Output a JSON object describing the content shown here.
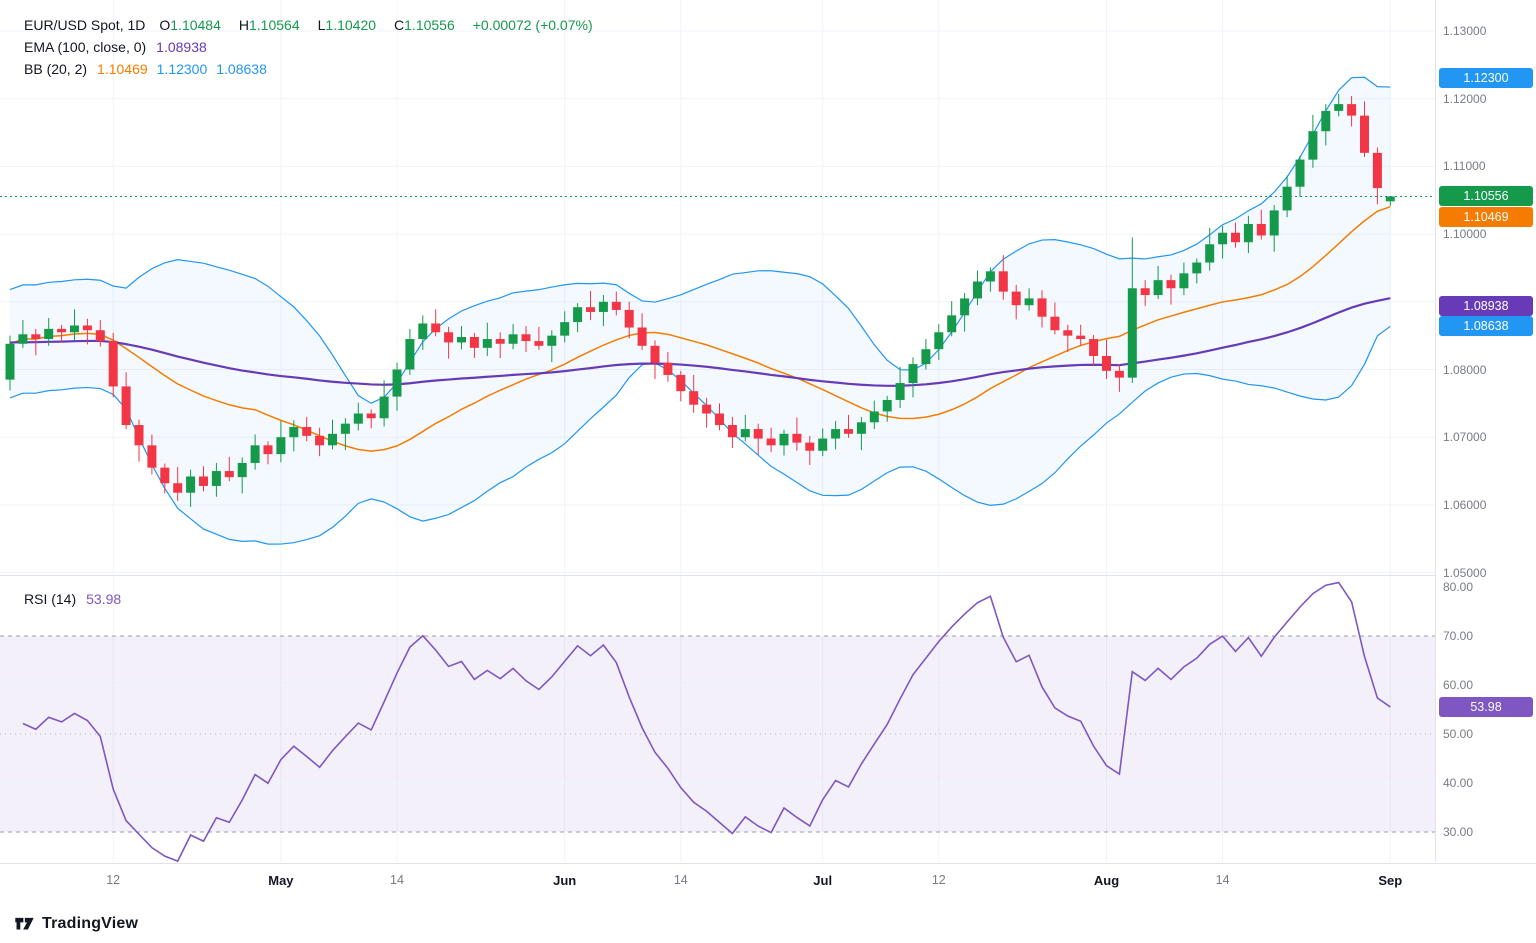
{
  "legend": {
    "symbol": "EUR/USD Spot, 1D",
    "ohlc": [
      {
        "k": "O",
        "v": "1.10484"
      },
      {
        "k": "H",
        "v": "1.10564"
      },
      {
        "k": "L",
        "v": "1.10420"
      },
      {
        "k": "C",
        "v": "1.10556"
      }
    ],
    "change": "+0.00072 (+0.07%)",
    "ema_label": "EMA (100, close, 0)",
    "ema_value": "1.08938",
    "bb_label": "BB (20, 2)",
    "bb_basis": "1.10469",
    "bb_upper": "1.12300",
    "bb_lower": "1.08638",
    "rsi_label": "RSI (14)",
    "rsi_value": "53.98"
  },
  "footer": {
    "brand": "TradingView"
  },
  "colors": {
    "text": "#131722",
    "axis_text": "#787b86",
    "grid": "#f0f3fa",
    "separator": "#e0e3eb",
    "up": "#159a4c",
    "down": "#f23645",
    "ema": "#673ab7",
    "bb_basis": "#f57c00",
    "bb_band": "#2196f3",
    "bb_fill": "rgba(33,150,243,0.055)",
    "rsi_line": "#7e57c2",
    "rsi_zone": "rgba(126,87,194,0.09)",
    "level_dash": "#9aa0aa"
  },
  "axes": {
    "price_ticks": [
      {
        "label": "1.13000",
        "value": 1.13
      },
      {
        "label": "1.12000",
        "value": 1.12
      },
      {
        "label": "1.11000",
        "value": 1.11
      },
      {
        "label": "1.10000",
        "value": 1.1
      },
      {
        "label": "1.09000",
        "value": 1.09
      },
      {
        "label": "1.08000",
        "value": 1.08
      },
      {
        "label": "1.07000",
        "value": 1.07
      },
      {
        "label": "1.06000",
        "value": 1.06
      },
      {
        "label": "1.05000",
        "value": 1.05
      }
    ],
    "rsi_ticks": [
      {
        "label": "80.00",
        "value": 80
      },
      {
        "label": "70.00",
        "value": 70
      },
      {
        "label": "60.00",
        "value": 60
      },
      {
        "label": "50.00",
        "value": 50
      },
      {
        "label": "40.00",
        "value": 40
      },
      {
        "label": "30.00",
        "value": 30
      }
    ],
    "time_ticks": [
      {
        "label": "12",
        "index": 8,
        "major": false
      },
      {
        "label": "May",
        "index": 21,
        "major": true
      },
      {
        "label": "14",
        "index": 30,
        "major": false
      },
      {
        "label": "Jun",
        "index": 43,
        "major": true
      },
      {
        "label": "14",
        "index": 52,
        "major": false
      },
      {
        "label": "Jul",
        "index": 63,
        "major": true
      },
      {
        "label": "12",
        "index": 72,
        "major": false
      },
      {
        "label": "Aug",
        "index": 85,
        "major": true
      },
      {
        "label": "14",
        "index": 94,
        "major": false
      },
      {
        "label": "Sep",
        "index": 107,
        "major": true
      }
    ]
  },
  "badges": {
    "price": [
      {
        "id": "bb-upper",
        "label": "1.12300",
        "value": 1.123,
        "color": "#2196f3"
      },
      {
        "id": "last-price",
        "label": "1.10556",
        "value": 1.10556,
        "color": "#159a4c"
      },
      {
        "id": "bb-basis",
        "label": "1.10469",
        "value": 1.10469,
        "color": "#f57c00",
        "stack_below": "last-price"
      },
      {
        "id": "ema",
        "label": "1.08938",
        "value": 1.08938,
        "color": "#673ab7"
      },
      {
        "id": "bb-lower",
        "label": "1.08638",
        "value": 1.08638,
        "color": "#2196f3"
      }
    ],
    "rsi": {
      "label": "53.98",
      "color": "#7e57c2"
    }
  },
  "chart_data": [
    {
      "type": "candlestick",
      "title": "EUR/USD Spot, 1D",
      "ylim": [
        1.0497,
        1.1346
      ],
      "y_ticks": [
        1.05,
        1.06,
        1.07,
        1.08,
        1.09,
        1.1,
        1.11,
        1.12,
        1.13
      ],
      "ohlc_display": {
        "open": 1.10484,
        "high": 1.10564,
        "low": 1.1042,
        "close": 1.10556,
        "change": "+0.00072 (+0.07%)"
      },
      "first_open": 1.0785,
      "closes": [
        1.0838,
        1.0852,
        1.0845,
        1.086,
        1.0855,
        1.0865,
        1.0858,
        1.0842,
        1.0775,
        1.0718,
        1.0688,
        1.0655,
        1.0632,
        1.0618,
        1.0642,
        1.0628,
        1.065,
        1.0641,
        1.0662,
        1.0688,
        1.0675,
        1.07,
        1.0715,
        1.0702,
        1.0688,
        1.0705,
        1.072,
        1.0735,
        1.0728,
        1.076,
        1.08,
        1.0845,
        1.0868,
        1.0855,
        1.084,
        1.0848,
        1.0832,
        1.0845,
        1.0838,
        1.0852,
        1.0842,
        1.0835,
        1.085,
        1.087,
        1.0892,
        1.0885,
        1.09,
        1.0888,
        1.0862,
        1.0835,
        1.081,
        1.0792,
        1.0768,
        1.0748,
        1.0735,
        1.0718,
        1.07,
        1.0712,
        1.0698,
        1.0688,
        1.0705,
        1.0692,
        1.068,
        1.0698,
        1.0712,
        1.0705,
        1.0722,
        1.0738,
        1.0755,
        1.078,
        1.0808,
        1.083,
        1.0855,
        1.088,
        1.0905,
        1.093,
        1.0945,
        1.0915,
        1.0895,
        1.0905,
        1.0878,
        1.0858,
        1.085,
        1.0845,
        1.082,
        1.0798,
        1.0788,
        1.092,
        1.091,
        1.0932,
        1.092,
        1.0942,
        1.0958,
        1.0985,
        1.1002,
        1.0988,
        1.1015,
        1.0998,
        1.1035,
        1.107,
        1.111,
        1.1152,
        1.1182,
        1.1192,
        1.1175,
        1.112,
        1.1068,
        1.10556
      ],
      "wick_pattern": [
        0.0012,
        0.0021,
        0.0008,
        0.0016,
        0.0006,
        0.0024,
        0.001,
        0.0015
      ],
      "spike": {
        "index": 87,
        "high": 1.0995
      },
      "last_candle": {
        "open": 1.10484,
        "high": 1.10564,
        "low": 1.1042,
        "close": 1.10556
      },
      "indicators": [
        {
          "name": "EMA",
          "params": "100, close, 0",
          "last": 1.08938,
          "color": "#673ab7"
        },
        {
          "name": "BB",
          "params": "20, 2",
          "basis": 1.10469,
          "upper": 1.123,
          "lower": 1.08638
        }
      ]
    },
    {
      "type": "line",
      "name": "RSI (14)",
      "period": 14,
      "source": "computed from candlestick closes above, Wilder smoothing",
      "levels": {
        "overbought": 70,
        "midline": 50,
        "oversold": 30
      },
      "last_value": 53.98,
      "ylim": [
        25,
        82
      ]
    }
  ]
}
